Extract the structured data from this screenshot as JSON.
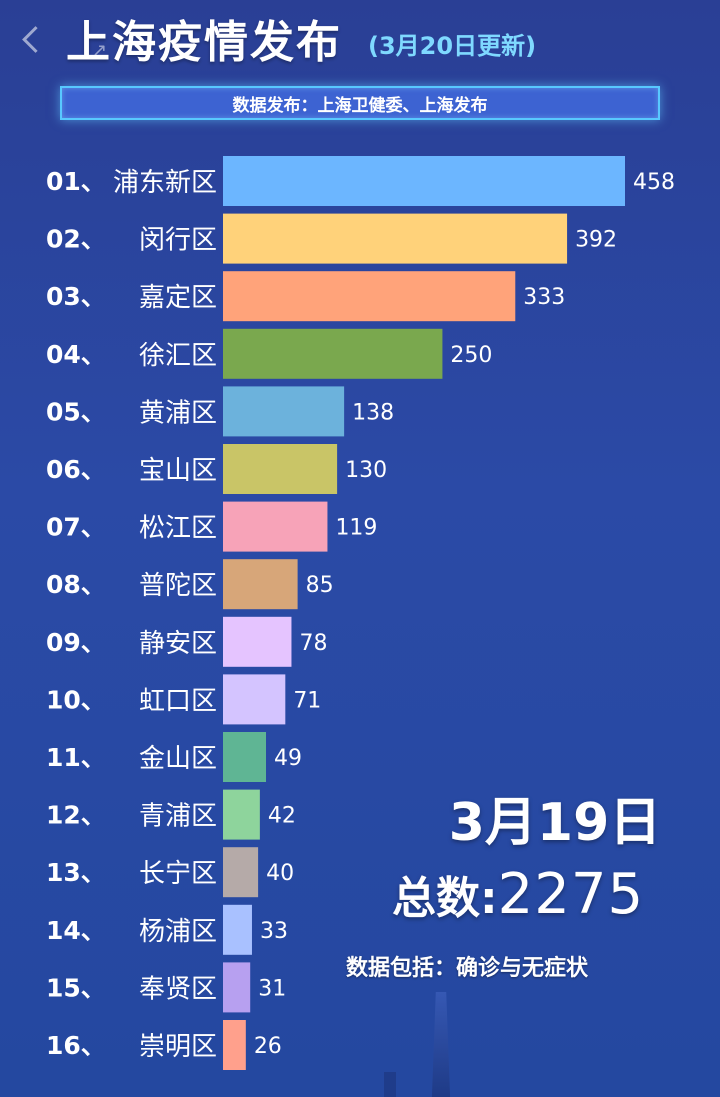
{
  "header": {
    "title": "上海疫情发布",
    "subtitle": "(3月20日更新)",
    "source": "数据发布：上海卫健委、上海发布"
  },
  "summary": {
    "date": "3月19日",
    "total_label": "总数:",
    "total_value": "2275",
    "note": "数据包括：确诊与无症状"
  },
  "chart_data": {
    "type": "bar",
    "orientation": "horizontal",
    "categories": [
      "01、浦东新区",
      "02、闵行区",
      "03、嘉定区",
      "04、徐汇区",
      "05、黄浦区",
      "06、宝山区",
      "07、松江区",
      "08、普陀区",
      "09、静安区",
      "10、虹口区",
      "11、金山区",
      "12、青浦区",
      "13、长宁区",
      "14、杨浦区",
      "15、奉贤区",
      "16、崇明区"
    ],
    "values": [
      458,
      392,
      333,
      250,
      138,
      130,
      119,
      85,
      78,
      71,
      49,
      42,
      40,
      33,
      31,
      26
    ],
    "colors": [
      "#6cb6ff",
      "#ffd27a",
      "#ffa37a",
      "#7aa84e",
      "#6cb2dc",
      "#c9c567",
      "#f7a3b8",
      "#d7a679",
      "#e5c4ff",
      "#d4c4ff",
      "#5fb594",
      "#8ed49c",
      "#b5aaa8",
      "#a9c1ff",
      "#b7a0f0",
      "#ffa08c"
    ],
    "title": "",
    "xlabel": "",
    "ylabel": "",
    "xlim": [
      0,
      458
    ]
  }
}
